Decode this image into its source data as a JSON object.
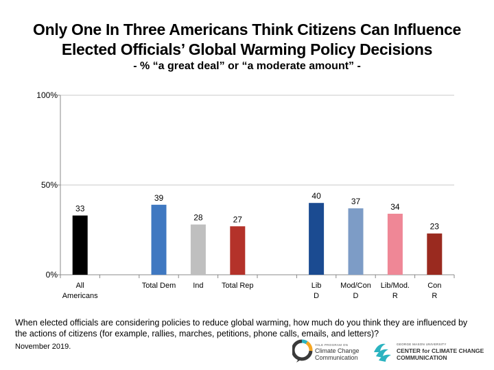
{
  "title_line1": "Only One In Three Americans Think Citizens Can Influence",
  "title_line2": "Elected Officials’ Global Warming Policy Decisions",
  "subtitle": "- % “a great deal” or “a moderate amount” -",
  "question": "When elected officials are considering policies to reduce global warming, how much do you think they are influenced by the actions of citizens (for example, rallies, marches, petitions, phone calls, emails, and letters)?",
  "date": "November 2019.",
  "logos": {
    "yale": {
      "line1": "YALE PROGRAM ON",
      "line2": "Climate Change",
      "line3": "Communication"
    },
    "gmu": {
      "line1": "GEORGE MASON UNIVERSITY",
      "line2": "CENTER for CLIMATE CHANGE",
      "line3": "COMMUNICATION"
    }
  },
  "chart_data": {
    "type": "bar",
    "ylim": [
      0,
      100
    ],
    "yticks": [
      0,
      50,
      100
    ],
    "ytick_labels": [
      "0%",
      "50%",
      "100%"
    ],
    "grid": true,
    "categories": [
      {
        "label": [
          "All",
          "Americans"
        ],
        "value": 33,
        "color": "#000000"
      },
      {
        "label": [],
        "value": null,
        "color": null
      },
      {
        "label": [
          "Total Dem"
        ],
        "value": 39,
        "color": "#3f78c1"
      },
      {
        "label": [
          "Ind"
        ],
        "value": 28,
        "color": "#bfbfbf"
      },
      {
        "label": [
          "Total Rep"
        ],
        "value": 27,
        "color": "#b4322a"
      },
      {
        "label": [],
        "value": null,
        "color": null
      },
      {
        "label": [
          "Lib",
          "D"
        ],
        "value": 40,
        "color": "#1b4b91"
      },
      {
        "label": [
          "Mod/Con",
          "D"
        ],
        "value": 37,
        "color": "#7d9cc6"
      },
      {
        "label": [
          "Lib/Mod.",
          "R"
        ],
        "value": 34,
        "color": "#ef8796"
      },
      {
        "label": [
          "Con",
          "R"
        ],
        "value": 23,
        "color": "#9a2a1f"
      }
    ]
  }
}
